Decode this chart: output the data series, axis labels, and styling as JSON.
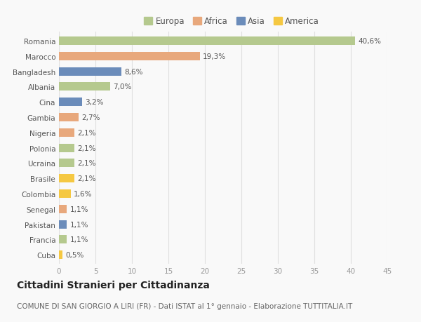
{
  "countries": [
    "Romania",
    "Marocco",
    "Bangladesh",
    "Albania",
    "Cina",
    "Gambia",
    "Nigeria",
    "Polonia",
    "Ucraina",
    "Brasile",
    "Colombia",
    "Senegal",
    "Pakistan",
    "Francia",
    "Cuba"
  ],
  "values": [
    40.6,
    19.3,
    8.6,
    7.0,
    3.2,
    2.7,
    2.1,
    2.1,
    2.1,
    2.1,
    1.6,
    1.1,
    1.1,
    1.1,
    0.5
  ],
  "labels": [
    "40,6%",
    "19,3%",
    "8,6%",
    "7,0%",
    "3,2%",
    "2,7%",
    "2,1%",
    "2,1%",
    "2,1%",
    "2,1%",
    "1,6%",
    "1,1%",
    "1,1%",
    "1,1%",
    "0,5%"
  ],
  "colors": [
    "#b5c98e",
    "#e8a87c",
    "#6b8cba",
    "#b5c98e",
    "#6b8cba",
    "#e8a87c",
    "#e8a87c",
    "#b5c98e",
    "#b5c98e",
    "#f5c842",
    "#f5c842",
    "#e8a87c",
    "#6b8cba",
    "#b5c98e",
    "#f5c842"
  ],
  "legend_labels": [
    "Europa",
    "Africa",
    "Asia",
    "America"
  ],
  "legend_colors": [
    "#b5c98e",
    "#e8a87c",
    "#6b8cba",
    "#f5c842"
  ],
  "title": "Cittadini Stranieri per Cittadinanza",
  "subtitle": "COMUNE DI SAN GIORGIO A LIRI (FR) - Dati ISTAT al 1° gennaio - Elaborazione TUTTITALIA.IT",
  "xlim": [
    0,
    45
  ],
  "xticks": [
    0,
    5,
    10,
    15,
    20,
    25,
    30,
    35,
    40,
    45
  ],
  "background_color": "#f9f9f9",
  "grid_color": "#e0e0e0",
  "bar_height": 0.55,
  "title_fontsize": 10,
  "subtitle_fontsize": 7.5,
  "label_fontsize": 7.5,
  "tick_fontsize": 7.5,
  "legend_fontsize": 8.5
}
